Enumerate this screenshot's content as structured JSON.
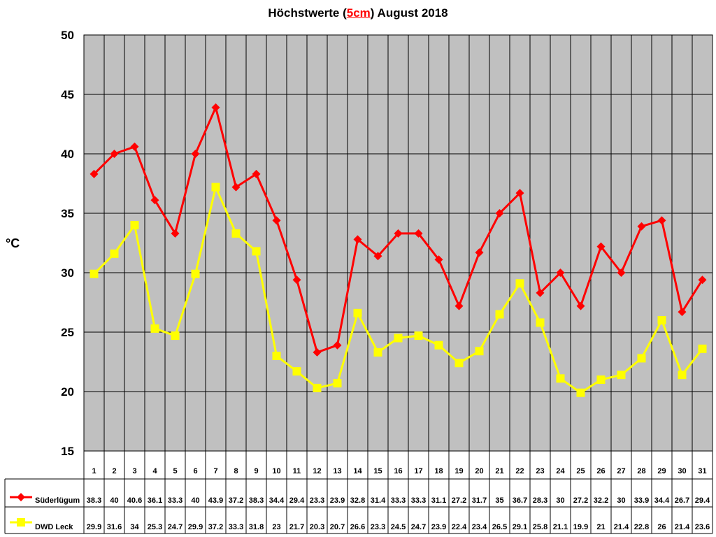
{
  "chart_data": {
    "type": "line",
    "title": {
      "prefix": "Höchstwerte (",
      "highlight": "5cm",
      "suffix": ") August 2018"
    },
    "ylabel": "°C",
    "xlabel": "",
    "ylim": [
      15,
      50
    ],
    "yticks": [
      15,
      20,
      25,
      30,
      35,
      40,
      45,
      50
    ],
    "grid": true,
    "legend": "data-table-left",
    "categories": [
      "1",
      "2",
      "3",
      "4",
      "5",
      "6",
      "7",
      "8",
      "9",
      "10",
      "11",
      "12",
      "13",
      "14",
      "15",
      "16",
      "17",
      "18",
      "19",
      "20",
      "21",
      "22",
      "23",
      "24",
      "25",
      "26",
      "27",
      "28",
      "29",
      "30",
      "31"
    ],
    "series": [
      {
        "name": "Süderlügum",
        "color": "#ff0000",
        "marker": "diamond",
        "values": [
          38.3,
          40,
          40.6,
          36.1,
          33.3,
          40,
          43.9,
          37.2,
          38.3,
          34.4,
          29.4,
          23.3,
          23.9,
          32.8,
          31.4,
          33.3,
          33.3,
          31.1,
          27.2,
          31.7,
          35,
          36.7,
          28.3,
          30,
          27.2,
          32.2,
          30,
          33.9,
          34.4,
          26.7,
          29.4
        ]
      },
      {
        "name": "DWD Leck",
        "color": "#ffff00",
        "marker": "square",
        "values": [
          29.9,
          31.6,
          34,
          25.3,
          24.7,
          29.9,
          37.2,
          33.3,
          31.8,
          23,
          21.7,
          20.3,
          20.7,
          26.6,
          23.3,
          24.5,
          24.7,
          23.9,
          22.4,
          23.4,
          26.5,
          29.1,
          25.8,
          21.1,
          19.9,
          21,
          21.4,
          22.8,
          26,
          21.4,
          23.6
        ]
      }
    ],
    "plot_background": "#c0c0c0"
  }
}
